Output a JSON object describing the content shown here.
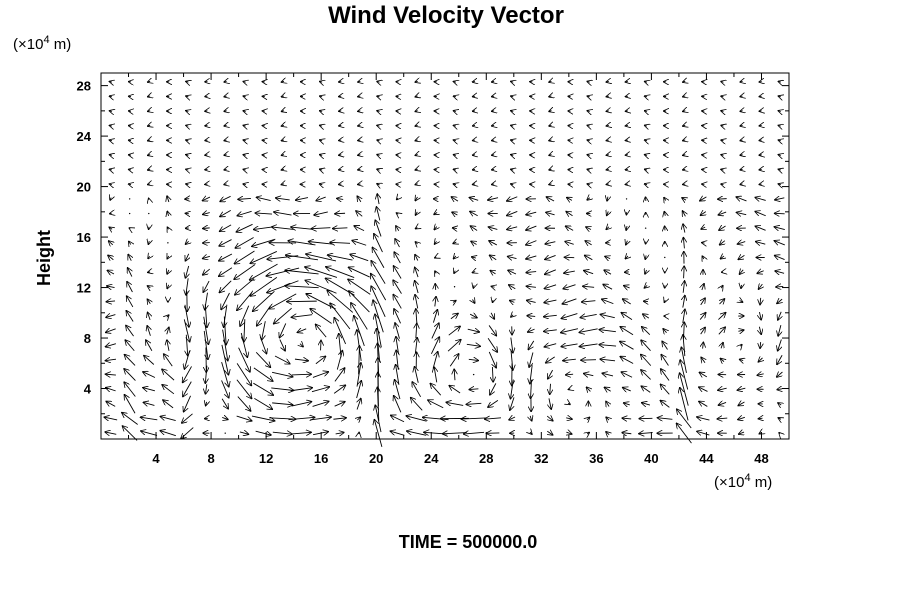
{
  "chart_data": {
    "type": "vector_field",
    "title": "Wind Velocity Vector",
    "ylabel": "Height",
    "xunit_prefix": "(×10",
    "xunit_exp": "4",
    "xunit_suffix": " m)",
    "yunit_prefix": "(×10",
    "yunit_exp": "4",
    "yunit_suffix": " m)",
    "xlim": [
      0,
      50
    ],
    "ylim": [
      0,
      29
    ],
    "xticks": [
      4,
      8,
      12,
      16,
      20,
      24,
      28,
      32,
      36,
      40,
      44,
      48
    ],
    "yticks": [
      4,
      8,
      12,
      16,
      20,
      24,
      28
    ],
    "grid": false,
    "footer": "TIME = 500000.0"
  }
}
